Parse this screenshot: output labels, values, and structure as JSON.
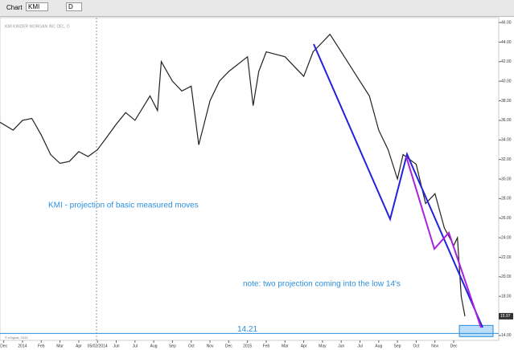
{
  "toolbar": {
    "window_label": "Chart",
    "symbol": "KMI",
    "interval": "D"
  },
  "chart_data": {
    "type": "line",
    "subtitle": "KMI KINDER MORGAN INC DEL, D",
    "series": [
      {
        "name": "KMI",
        "color": "#222222",
        "x": [
          -1.2,
          -0.5,
          0,
          0.5,
          1,
          1.5,
          2,
          2.5,
          3,
          3.5,
          4,
          4.5,
          5,
          5.5,
          6,
          6.8,
          7.2,
          7.4,
          8,
          8.5,
          9,
          9.4,
          10,
          10.5,
          11,
          12,
          12.3,
          12.6,
          13,
          14,
          15,
          15.5,
          16,
          16.4,
          17,
          18,
          18.5,
          19,
          19.5,
          20,
          20.3,
          21,
          21.5,
          22,
          22.5,
          23,
          23.2,
          23.4,
          23.6
        ],
        "values": [
          35.8,
          35,
          36,
          36.2,
          34.5,
          32.5,
          31.6,
          31.8,
          32.8,
          32.3,
          33,
          34.3,
          35.6,
          36.8,
          36,
          38.5,
          37,
          42,
          40,
          39,
          39.5,
          33.5,
          38,
          40,
          41,
          42.5,
          37.5,
          41,
          43,
          42.5,
          40.5,
          43,
          44,
          44.8,
          43,
          40,
          38.5,
          35,
          33,
          30,
          32.5,
          31.5,
          27.5,
          28.5,
          25,
          23.2,
          24,
          18,
          15.97
        ]
      }
    ],
    "xlim": [
      -1.2,
      25.4
    ],
    "xticks": [
      {
        "value": -1,
        "label": "Dec"
      },
      {
        "value": 0,
        "label": "2014"
      },
      {
        "value": 1,
        "label": "Feb"
      },
      {
        "value": 2,
        "label": "Mar"
      },
      {
        "value": 3,
        "label": "Apr"
      },
      {
        "value": 4,
        "label": "05/02/2014"
      },
      {
        "value": 5,
        "label": "Jun"
      },
      {
        "value": 6,
        "label": "Jul"
      },
      {
        "value": 7,
        "label": "Aug"
      },
      {
        "value": 8,
        "label": "Sep"
      },
      {
        "value": 9,
        "label": "Oct"
      },
      {
        "value": 10,
        "label": "Nov"
      },
      {
        "value": 11,
        "label": "Dec"
      },
      {
        "value": 12,
        "label": "2015"
      },
      {
        "value": 13,
        "label": "Feb"
      },
      {
        "value": 14,
        "label": "Mar"
      },
      {
        "value": 15,
        "label": "Apr"
      },
      {
        "value": 16,
        "label": "May"
      },
      {
        "value": 17,
        "label": "Jun"
      },
      {
        "value": 18,
        "label": "Jul"
      },
      {
        "value": 19,
        "label": "Aug"
      },
      {
        "value": 20,
        "label": "Sep"
      },
      {
        "value": 21,
        "label": "Oct"
      },
      {
        "value": 22,
        "label": "Nov"
      },
      {
        "value": 23,
        "label": "Dec"
      }
    ],
    "ylim": [
      13.5,
      46.5
    ],
    "yticks": [
      {
        "value": 14,
        "label": "14.00"
      },
      {
        "value": 16,
        "label": "16.00"
      },
      {
        "value": 18,
        "label": "18.00"
      },
      {
        "value": 20,
        "label": "20.00"
      },
      {
        "value": 22,
        "label": "22.00"
      },
      {
        "value": 24,
        "label": "24.00"
      },
      {
        "value": 26,
        "label": "26.00"
      },
      {
        "value": 28,
        "label": "28.00"
      },
      {
        "value": 30,
        "label": "30.00"
      },
      {
        "value": 32,
        "label": "32.00"
      },
      {
        "value": 34,
        "label": "34.00"
      },
      {
        "value": 36,
        "label": "36.00"
      },
      {
        "value": 38,
        "label": "38.00"
      },
      {
        "value": 40,
        "label": "40.00"
      },
      {
        "value": 42,
        "label": "42.00"
      },
      {
        "value": 44,
        "label": "44.00"
      },
      {
        "value": 46,
        "label": "46.00"
      }
    ],
    "last_price": {
      "value": 15.97,
      "label": "15.97"
    },
    "support_level": {
      "value": 14.21,
      "label": "14.21"
    },
    "annotations": [
      "KMI - projection of basic measured moves",
      "note: two projection coming into the low 14's"
    ],
    "copyright": "© eSignal, 2015"
  }
}
